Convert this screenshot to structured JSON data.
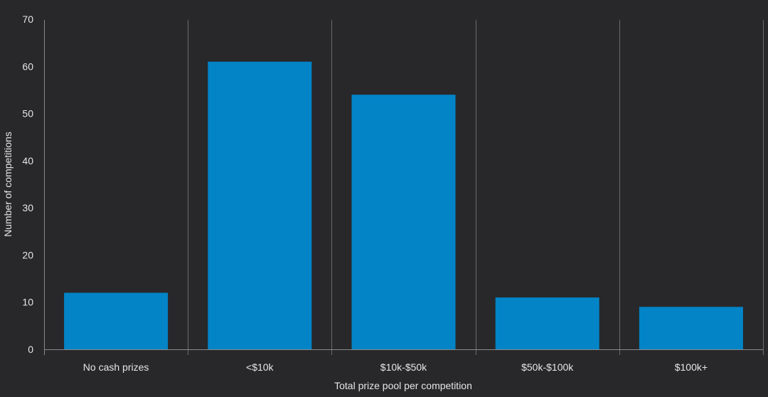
{
  "chart_data": {
    "type": "bar",
    "title": "",
    "xlabel": "Total prize pool per competition",
    "ylabel": "Number of competitions",
    "categories": [
      "No cash prizes",
      "<$10k",
      "$10k-$50k",
      "$50k-$100k",
      "$100k+"
    ],
    "values": [
      12,
      61,
      54,
      11,
      9
    ],
    "ylim": [
      0,
      70
    ],
    "yticks": [
      0,
      10,
      20,
      30,
      40,
      50,
      60,
      70
    ],
    "grid": "vertical separators between categories",
    "legend": "none",
    "colors": {
      "background": "#28282a",
      "bar": "#0284c7",
      "axis": "#8a8a8c",
      "text": "#e6e6e6"
    }
  }
}
